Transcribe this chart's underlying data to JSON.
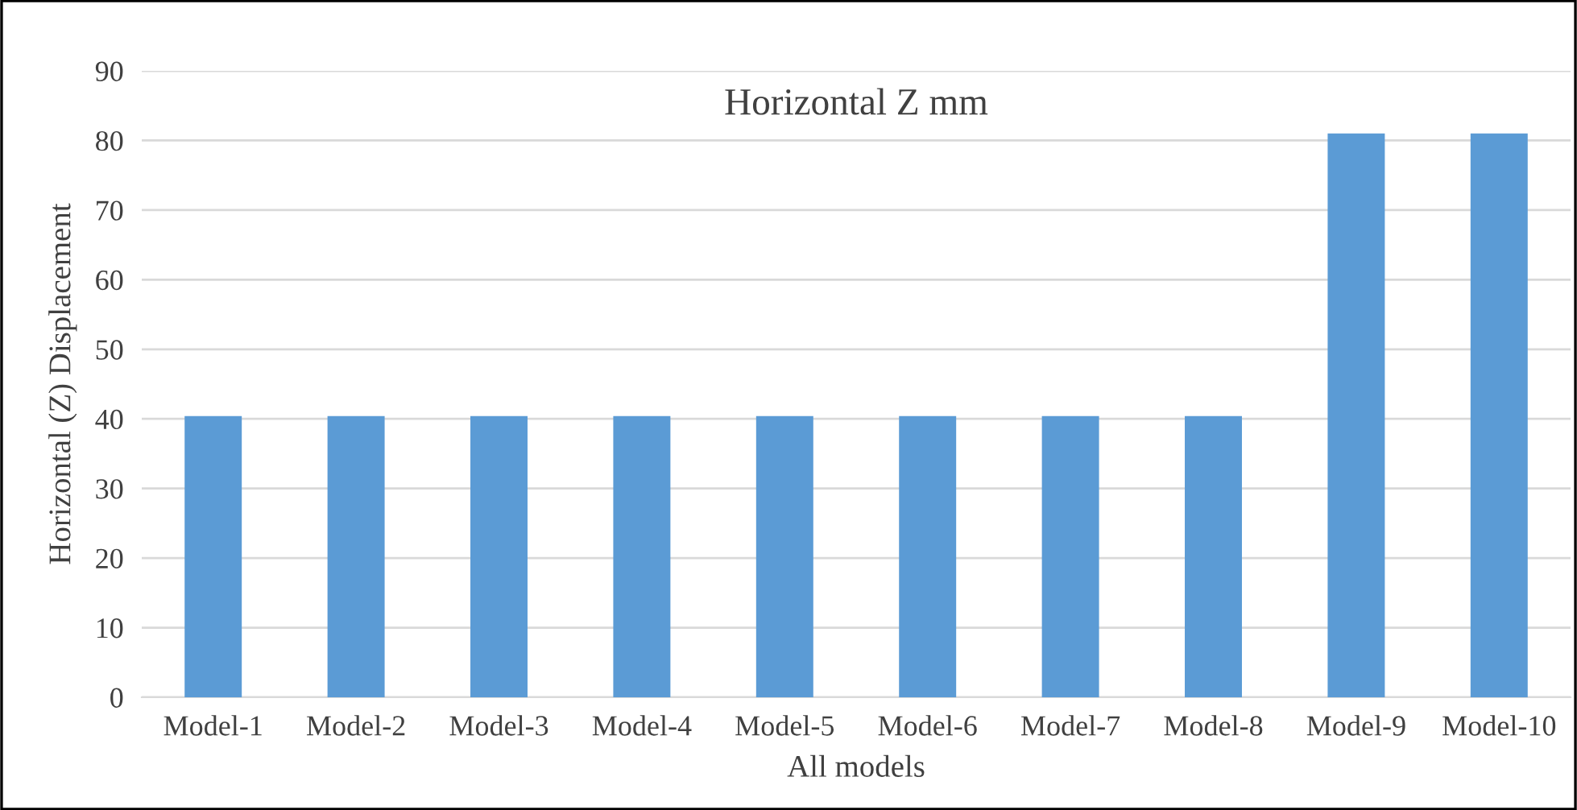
{
  "chart_data": {
    "type": "bar",
    "title": "Horizontal Z mm",
    "xlabel": "All models",
    "ylabel": "Horizontal (Z) Displacement",
    "categories": [
      "Model-1",
      "Model-2",
      "Model-3",
      "Model-4",
      "Model-5",
      "Model-6",
      "Model-7",
      "Model-8",
      "Model-9",
      "Model-10"
    ],
    "values": [
      40.4,
      40.4,
      40.4,
      40.4,
      40.4,
      40.4,
      40.4,
      40.4,
      81,
      81
    ],
    "color": "#5b9bd5",
    "ylim": [
      0,
      90
    ],
    "yticks": [
      0,
      10,
      20,
      30,
      40,
      50,
      60,
      70,
      80,
      90
    ],
    "grid": "y"
  }
}
